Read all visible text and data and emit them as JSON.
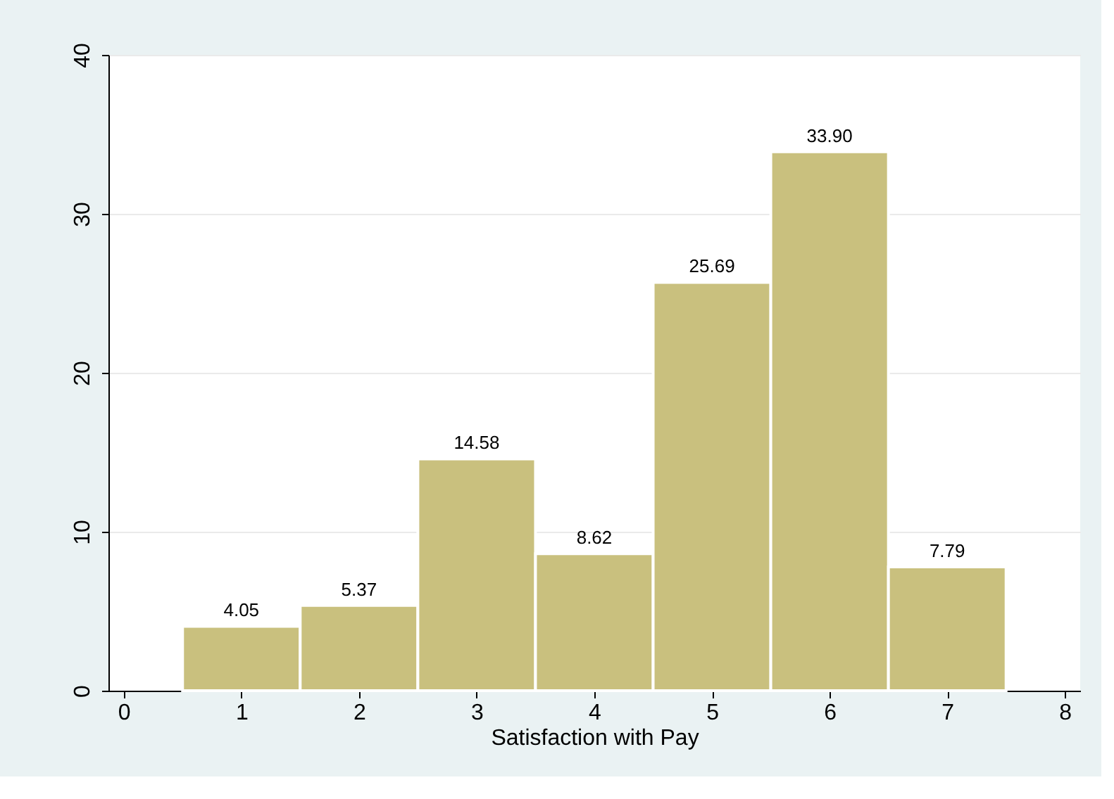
{
  "chart_data": {
    "type": "histogram",
    "xlabel": "Satisfaction with Pay",
    "bins": [
      0.5,
      1.5,
      2.5,
      3.5,
      4.5,
      5.5,
      6.5,
      7.5
    ],
    "values": [
      4.05,
      5.37,
      14.58,
      8.62,
      25.69,
      33.9,
      7.79
    ],
    "value_labels": [
      "4.05",
      "5.37",
      "14.58",
      "8.62",
      "25.69",
      "33.90",
      "7.79"
    ],
    "color": "#c9c07e",
    "xlim": [
      -0.13,
      8.13
    ],
    "xticks": [
      0,
      1,
      2,
      3,
      4,
      5,
      6,
      7,
      8
    ],
    "ylim": [
      0,
      40
    ],
    "yticks": [
      0,
      10,
      20,
      30,
      40
    ],
    "grid": "y"
  }
}
